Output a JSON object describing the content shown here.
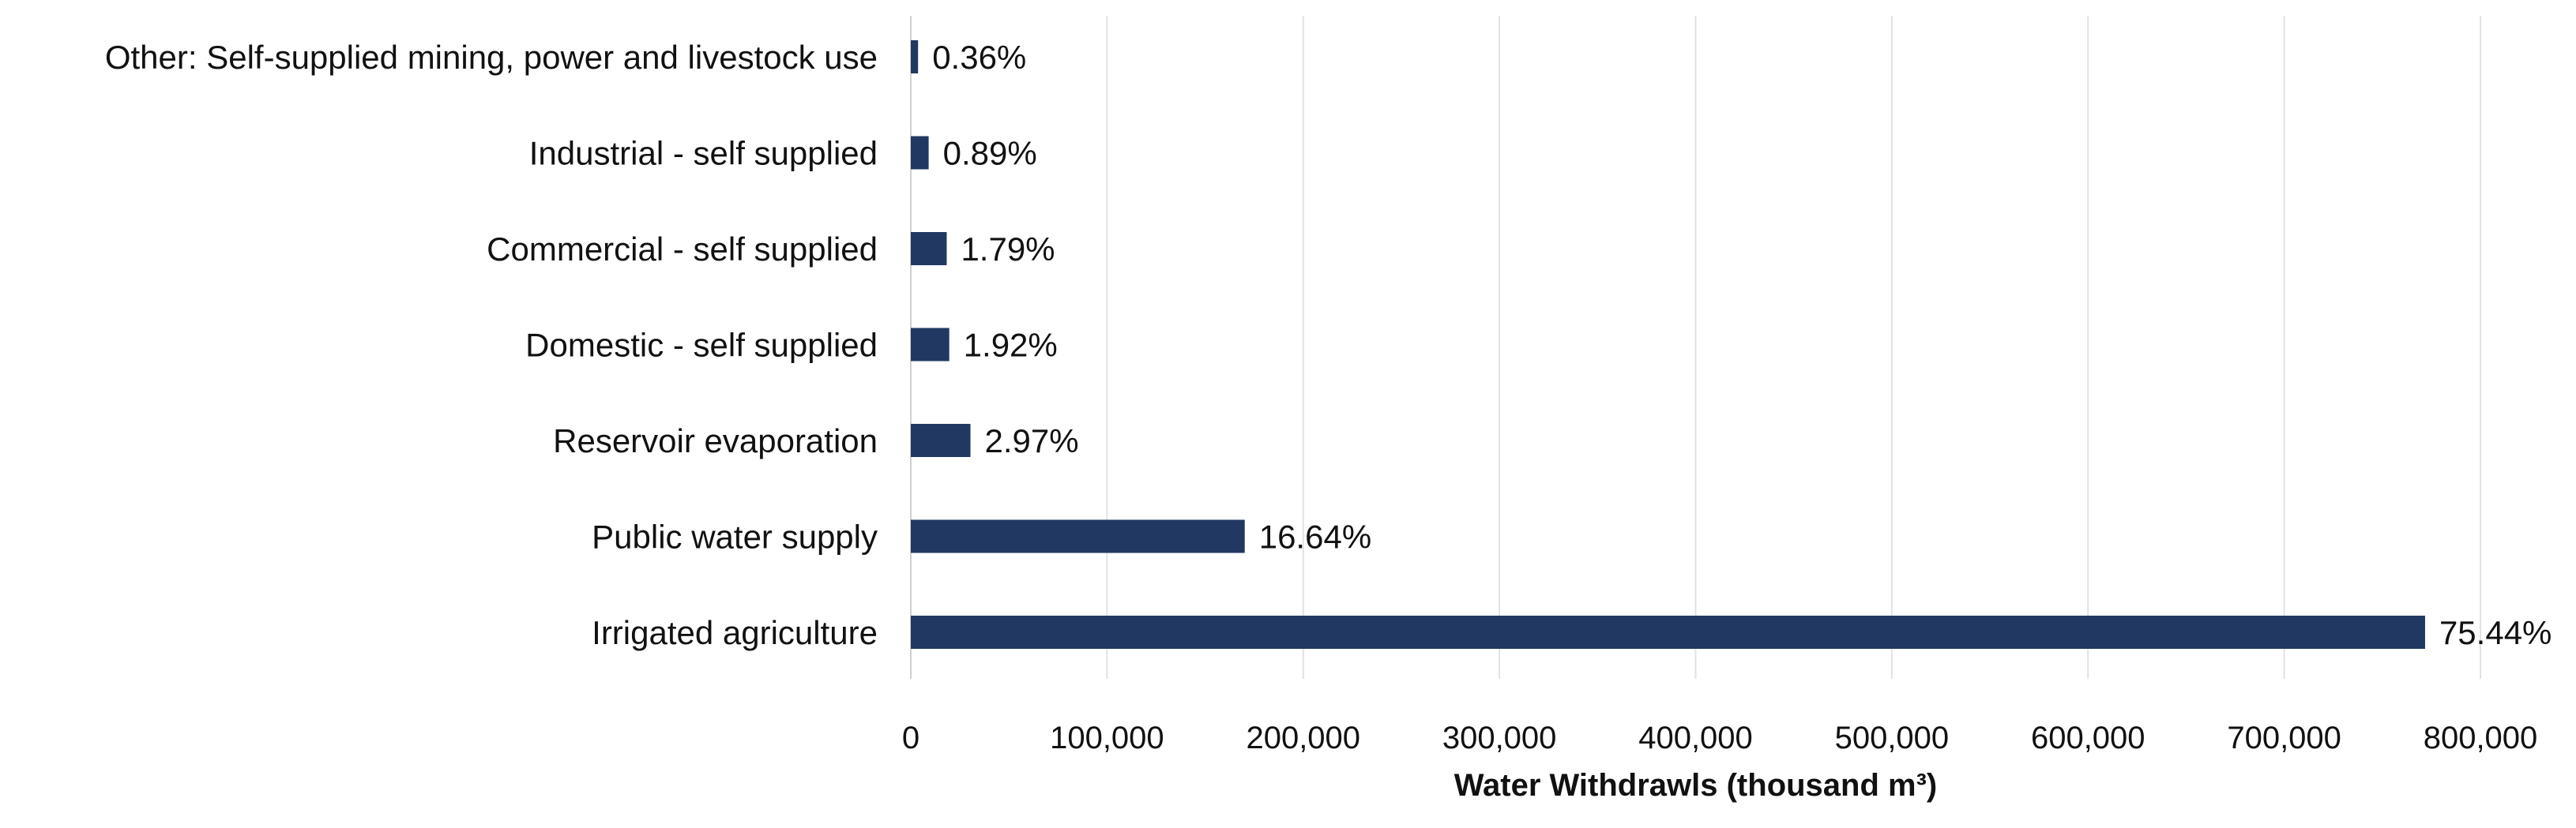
{
  "chart_data": {
    "type": "bar",
    "orientation": "horizontal",
    "categories": [
      "Other: Self-supplied mining, power and livestock use",
      "Industrial  - self supplied",
      "Commercial - self supplied",
      "Domestic - self supplied",
      "Reservoir evaporation",
      "Public water supply",
      "Irrigated agriculture"
    ],
    "values": [
      3700,
      9100,
      18300,
      19600,
      30400,
      170200,
      771800
    ],
    "data_labels": [
      "0.36%",
      "0.89%",
      "1.79%",
      "1.92%",
      "2.97%",
      "16.64%",
      "75.44%"
    ],
    "title": "",
    "xlabel": "Water Withdrawls (thousand m³)",
    "ylabel": "",
    "xlim": [
      0,
      800000
    ],
    "x_ticks": [
      0,
      100000,
      200000,
      300000,
      400000,
      500000,
      600000,
      700000,
      800000
    ],
    "x_tick_labels": [
      "0",
      "100,000",
      "200,000",
      "300,000",
      "400,000",
      "500,000",
      "600,000",
      "700,000",
      "800,000"
    ],
    "grid": true,
    "legend": "none",
    "bar_color": "#213862",
    "grid_color": "#e2e2e2"
  }
}
